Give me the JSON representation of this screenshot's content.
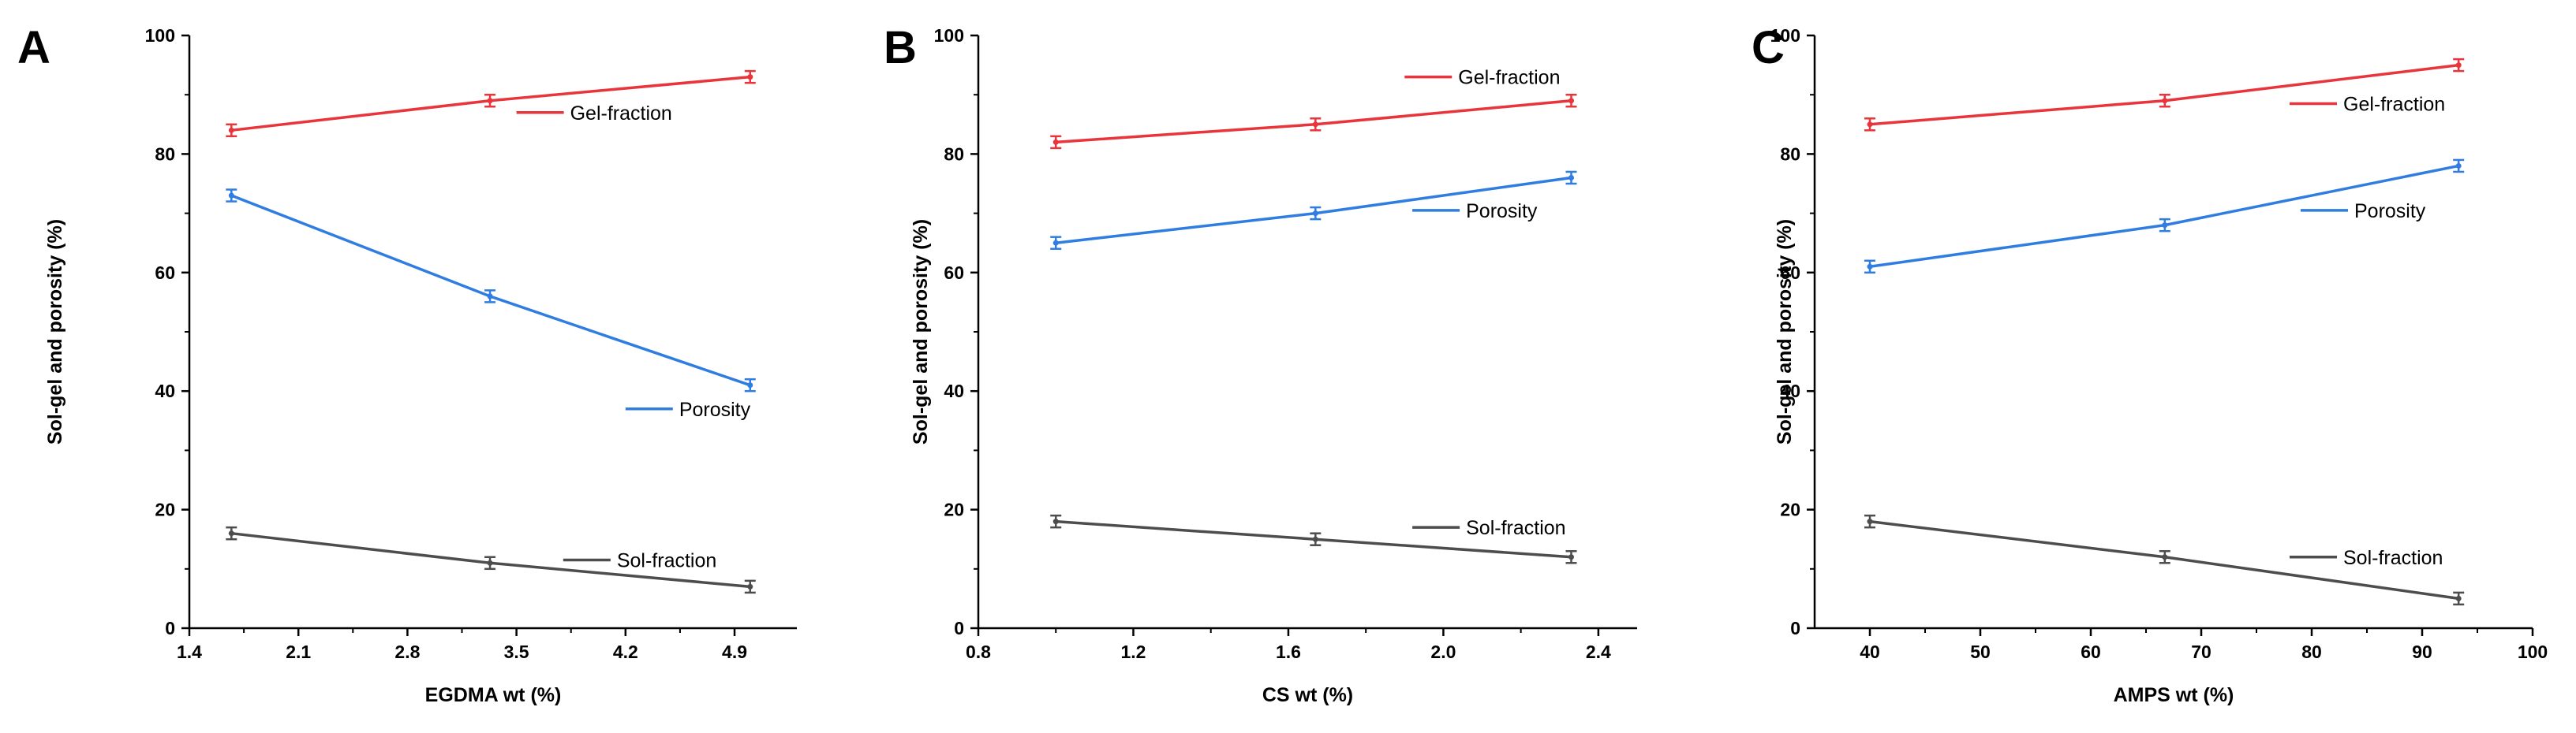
{
  "chart_data": [
    {
      "panel": "A",
      "type": "line",
      "xlabel": "EGDMA wt (%)",
      "ylabel": "Sol-gel and porosity (%)",
      "xlim": [
        1.4,
        5.3
      ],
      "ylim": [
        0,
        100
      ],
      "xticks": [
        1.4,
        2.1,
        2.8,
        3.5,
        4.2,
        4.9
      ],
      "xtick_labels": [
        "1.4",
        "2.1",
        "2.8",
        "3.5",
        "4.2",
        "4.9"
      ],
      "yticks": [
        0,
        20,
        40,
        60,
        80,
        100
      ],
      "ytick_labels": [
        "0",
        "20",
        "40",
        "60",
        "80",
        "100"
      ],
      "x": [
        1.67,
        3.33,
        5.0
      ],
      "series": [
        {
          "name": "Gel-fraction",
          "color": "#e8343a",
          "values": [
            84,
            89,
            93
          ],
          "errors": [
            1,
            1,
            1
          ],
          "legend_anchor": [
            3.5,
            87
          ]
        },
        {
          "name": "Porosity",
          "color": "#2f7de1",
          "values": [
            73,
            56,
            41
          ],
          "errors": [
            1,
            1,
            1
          ],
          "legend_anchor": [
            4.2,
            37
          ]
        },
        {
          "name": "Sol-fraction",
          "color": "#4d4d4d",
          "values": [
            16,
            11,
            7
          ],
          "errors": [
            1,
            1,
            1
          ],
          "legend_anchor": [
            3.8,
            11.5
          ]
        }
      ]
    },
    {
      "panel": "B",
      "type": "line",
      "xlabel": "CS wt (%)",
      "ylabel": "Sol-gel and porosity (%)",
      "xlim": [
        0.8,
        2.5
      ],
      "ylim": [
        0,
        100
      ],
      "xticks": [
        0.8,
        1.2,
        1.6,
        2.0,
        2.4
      ],
      "xtick_labels": [
        "0.8",
        "1.2",
        "1.6",
        "2.0",
        "2.4"
      ],
      "yticks": [
        0,
        20,
        40,
        60,
        80,
        100
      ],
      "ytick_labels": [
        "0",
        "20",
        "40",
        "60",
        "80",
        "100"
      ],
      "x": [
        1.0,
        1.67,
        2.33
      ],
      "series": [
        {
          "name": "Gel-fraction",
          "color": "#e8343a",
          "values": [
            82,
            85,
            89
          ],
          "errors": [
            1,
            1,
            1
          ],
          "legend_anchor": [
            1.9,
            93
          ]
        },
        {
          "name": "Porosity",
          "color": "#2f7de1",
          "values": [
            65,
            70,
            76
          ],
          "errors": [
            1,
            1,
            1
          ],
          "legend_anchor": [
            1.92,
            70.5
          ]
        },
        {
          "name": "Sol-fraction",
          "color": "#4d4d4d",
          "values": [
            18,
            15,
            12
          ],
          "errors": [
            1,
            1,
            1
          ],
          "legend_anchor": [
            1.92,
            17
          ]
        }
      ]
    },
    {
      "panel": "C",
      "type": "line",
      "xlabel": "AMPS wt (%)",
      "ylabel": "Sol-gel and porosity (%)",
      "xlim": [
        35,
        100
      ],
      "ylim": [
        0,
        100
      ],
      "xticks": [
        40,
        50,
        60,
        70,
        80,
        90,
        100
      ],
      "xtick_labels": [
        "40",
        "50",
        "60",
        "70",
        "80",
        "90",
        "100"
      ],
      "yticks": [
        0,
        20,
        40,
        60,
        80,
        100
      ],
      "ytick_labels": [
        "0",
        "20",
        "40",
        "60",
        "80",
        "100"
      ],
      "x": [
        40,
        66.7,
        93.3
      ],
      "series": [
        {
          "name": "Gel-fraction",
          "color": "#e8343a",
          "values": [
            85,
            89,
            95
          ],
          "errors": [
            1,
            1,
            1
          ],
          "legend_anchor": [
            78,
            88.5
          ]
        },
        {
          "name": "Porosity",
          "color": "#2f7de1",
          "values": [
            61,
            68,
            78
          ],
          "errors": [
            1,
            1,
            1
          ],
          "legend_anchor": [
            79,
            70.5
          ]
        },
        {
          "name": "Sol-fraction",
          "color": "#4d4d4d",
          "values": [
            18,
            12,
            5
          ],
          "errors": [
            1,
            1,
            1
          ],
          "legend_anchor": [
            78,
            12
          ]
        }
      ]
    }
  ]
}
